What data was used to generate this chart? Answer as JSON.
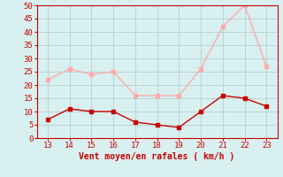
{
  "x": [
    13,
    14,
    15,
    16,
    17,
    18,
    19,
    20,
    21,
    22,
    23
  ],
  "wind_avg": [
    7,
    11,
    10,
    10,
    6,
    5,
    4,
    10,
    16,
    15,
    12
  ],
  "wind_gust": [
    22,
    26,
    24,
    25,
    16,
    16,
    16,
    26,
    42,
    50,
    27
  ],
  "avg_color": "#cc0000",
  "gust_color": "#ffaaaa",
  "bg_color": "#d8f0f0",
  "grid_color": "#b0c8c8",
  "xlabel": "Vent moyen/en rafales ( km/h )",
  "xlabel_color": "#cc0000",
  "tick_color": "#cc0000",
  "spine_color": "#cc0000",
  "ylim": [
    0,
    50
  ],
  "yticks": [
    0,
    5,
    10,
    15,
    20,
    25,
    30,
    35,
    40,
    45,
    50
  ],
  "xlim": [
    12.5,
    23.5
  ],
  "xticks": [
    13,
    14,
    15,
    16,
    17,
    18,
    19,
    20,
    21,
    22,
    23
  ]
}
